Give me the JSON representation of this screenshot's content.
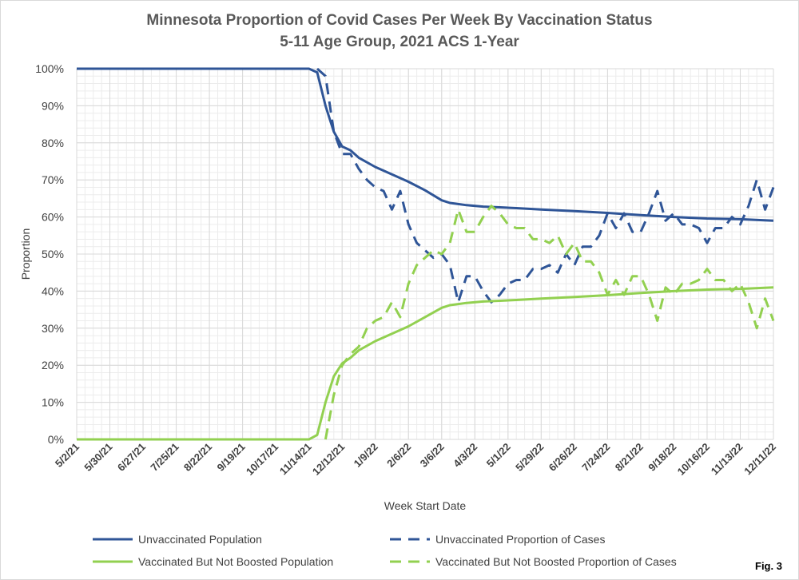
{
  "title_line1": "Minnesota Proportion of Covid Cases Per Week By Vaccination Status",
  "title_line2": "5-11 Age Group, 2021 ACS 1-Year",
  "fig_label": "Fig. 3",
  "colors": {
    "blue": "#2F5597",
    "green": "#92D050",
    "grid": "#d9d9d9",
    "axis_text": "#404040"
  },
  "chart_data": {
    "type": "line",
    "title": "Minnesota Proportion of Covid Cases Per Week By Vaccination Status",
    "subtitle": "5-11 Age Group, 2021 ACS 1-Year",
    "xlabel": "Week Start Date",
    "ylabel": "Proportion",
    "ylim": [
      0,
      1
    ],
    "yticks": [
      "0%",
      "10%",
      "20%",
      "30%",
      "40%",
      "50%",
      "60%",
      "70%",
      "80%",
      "90%",
      "100%"
    ],
    "xtick_labels": [
      "5/2/21",
      "5/30/21",
      "6/27/21",
      "7/25/21",
      "8/22/21",
      "9/19/21",
      "10/17/21",
      "11/14/21",
      "12/12/21",
      "1/9/22",
      "2/6/22",
      "3/6/22",
      "4/3/22",
      "5/1/22",
      "5/29/22",
      "6/26/22",
      "7/24/22",
      "8/21/22",
      "9/18/22",
      "10/16/22",
      "11/13/22",
      "12/11/22"
    ],
    "x_start": "5/2/21",
    "x_end": "12/11/22",
    "grid": true,
    "legend_position": "bottom",
    "series": [
      {
        "name": "Unvaccinated Population",
        "style": "solid",
        "color": "#2F5597",
        "points": [
          [
            "5/2/21",
            1.0
          ],
          [
            "11/7/21",
            1.0
          ],
          [
            "11/14/21",
            1.0
          ],
          [
            "11/21/21",
            0.99
          ],
          [
            "11/28/21",
            0.9
          ],
          [
            "12/5/21",
            0.83
          ],
          [
            "12/12/21",
            0.79
          ],
          [
            "12/19/21",
            0.78
          ],
          [
            "12/26/21",
            0.76
          ],
          [
            "1/9/22",
            0.735
          ],
          [
            "1/23/22",
            0.715
          ],
          [
            "2/6/22",
            0.695
          ],
          [
            "2/20/22",
            0.672
          ],
          [
            "3/6/22",
            0.645
          ],
          [
            "3/13/22",
            0.638
          ],
          [
            "3/27/22",
            0.632
          ],
          [
            "4/10/22",
            0.628
          ],
          [
            "4/24/22",
            0.626
          ],
          [
            "5/8/22",
            0.624
          ],
          [
            "5/29/22",
            0.62
          ],
          [
            "6/26/22",
            0.616
          ],
          [
            "7/24/22",
            0.611
          ],
          [
            "8/21/22",
            0.605
          ],
          [
            "9/18/22",
            0.6
          ],
          [
            "10/16/22",
            0.596
          ],
          [
            "11/13/22",
            0.594
          ],
          [
            "12/11/22",
            0.59
          ]
        ]
      },
      {
        "name": "Unvaccinated Proportion of Cases",
        "style": "dashed",
        "color": "#2F5597",
        "points": [
          [
            "11/21/21",
            1.0
          ],
          [
            "11/28/21",
            0.98
          ],
          [
            "12/5/21",
            0.83
          ],
          [
            "12/12/21",
            0.77
          ],
          [
            "12/19/21",
            0.77
          ],
          [
            "12/26/21",
            0.73
          ],
          [
            "1/2/22",
            0.7
          ],
          [
            "1/9/22",
            0.68
          ],
          [
            "1/16/22",
            0.67
          ],
          [
            "1/23/22",
            0.62
          ],
          [
            "1/30/22",
            0.67
          ],
          [
            "2/6/22",
            0.58
          ],
          [
            "2/13/22",
            0.53
          ],
          [
            "2/20/22",
            0.51
          ],
          [
            "2/27/22",
            0.49
          ],
          [
            "3/6/22",
            0.5
          ],
          [
            "3/13/22",
            0.47
          ],
          [
            "3/20/22",
            0.37
          ],
          [
            "3/27/22",
            0.44
          ],
          [
            "4/3/22",
            0.44
          ],
          [
            "4/10/22",
            0.4
          ],
          [
            "4/17/22",
            0.37
          ],
          [
            "4/24/22",
            0.39
          ],
          [
            "5/1/22",
            0.42
          ],
          [
            "5/8/22",
            0.43
          ],
          [
            "5/15/22",
            0.43
          ],
          [
            "5/22/22",
            0.46
          ],
          [
            "5/29/22",
            0.46
          ],
          [
            "6/5/22",
            0.47
          ],
          [
            "6/12/22",
            0.45
          ],
          [
            "6/19/22",
            0.5
          ],
          [
            "6/26/22",
            0.47
          ],
          [
            "7/3/22",
            0.52
          ],
          [
            "7/10/22",
            0.52
          ],
          [
            "7/17/22",
            0.55
          ],
          [
            "7/24/22",
            0.61
          ],
          [
            "7/31/22",
            0.57
          ],
          [
            "8/7/22",
            0.61
          ],
          [
            "8/14/22",
            0.56
          ],
          [
            "8/21/22",
            0.56
          ],
          [
            "8/28/22",
            0.61
          ],
          [
            "9/4/22",
            0.67
          ],
          [
            "9/11/22",
            0.59
          ],
          [
            "9/18/22",
            0.61
          ],
          [
            "9/25/22",
            0.58
          ],
          [
            "10/2/22",
            0.58
          ],
          [
            "10/9/22",
            0.57
          ],
          [
            "10/16/22",
            0.53
          ],
          [
            "10/23/22",
            0.57
          ],
          [
            "10/30/22",
            0.57
          ],
          [
            "11/6/22",
            0.6
          ],
          [
            "11/13/22",
            0.58
          ],
          [
            "11/20/22",
            0.63
          ],
          [
            "11/27/22",
            0.7
          ],
          [
            "12/4/22",
            0.62
          ],
          [
            "12/11/22",
            0.68
          ]
        ]
      },
      {
        "name": "Vaccinated But Not Boosted Population",
        "style": "solid",
        "color": "#92D050",
        "points": [
          [
            "5/2/21",
            0.0
          ],
          [
            "11/7/21",
            0.0
          ],
          [
            "11/14/21",
            0.0
          ],
          [
            "11/21/21",
            0.012
          ],
          [
            "11/28/21",
            0.1
          ],
          [
            "12/5/21",
            0.17
          ],
          [
            "12/12/21",
            0.205
          ],
          [
            "12/19/21",
            0.22
          ],
          [
            "12/26/21",
            0.24
          ],
          [
            "1/9/22",
            0.265
          ],
          [
            "1/23/22",
            0.285
          ],
          [
            "2/6/22",
            0.305
          ],
          [
            "2/20/22",
            0.33
          ],
          [
            "3/6/22",
            0.355
          ],
          [
            "3/13/22",
            0.362
          ],
          [
            "3/27/22",
            0.368
          ],
          [
            "4/10/22",
            0.372
          ],
          [
            "4/24/22",
            0.374
          ],
          [
            "5/8/22",
            0.376
          ],
          [
            "5/29/22",
            0.38
          ],
          [
            "6/26/22",
            0.384
          ],
          [
            "7/24/22",
            0.389
          ],
          [
            "8/21/22",
            0.395
          ],
          [
            "9/18/22",
            0.4
          ],
          [
            "10/16/22",
            0.404
          ],
          [
            "11/13/22",
            0.406
          ],
          [
            "12/11/22",
            0.41
          ]
        ]
      },
      {
        "name": "Vaccinated But Not Boosted Proportion of Cases",
        "style": "dashed",
        "color": "#92D050",
        "points": [
          [
            "11/28/21",
            0.0
          ],
          [
            "12/5/21",
            0.12
          ],
          [
            "12/12/21",
            0.2
          ],
          [
            "12/19/21",
            0.23
          ],
          [
            "12/26/21",
            0.25
          ],
          [
            "1/2/22",
            0.3
          ],
          [
            "1/9/22",
            0.32
          ],
          [
            "1/16/22",
            0.33
          ],
          [
            "1/23/22",
            0.37
          ],
          [
            "1/30/22",
            0.33
          ],
          [
            "2/6/22",
            0.42
          ],
          [
            "2/13/22",
            0.47
          ],
          [
            "2/20/22",
            0.49
          ],
          [
            "2/27/22",
            0.51
          ],
          [
            "3/6/22",
            0.5
          ],
          [
            "3/13/22",
            0.53
          ],
          [
            "3/20/22",
            0.62
          ],
          [
            "3/27/22",
            0.56
          ],
          [
            "4/3/22",
            0.56
          ],
          [
            "4/10/22",
            0.6
          ],
          [
            "4/17/22",
            0.63
          ],
          [
            "4/24/22",
            0.61
          ],
          [
            "5/1/22",
            0.58
          ],
          [
            "5/8/22",
            0.57
          ],
          [
            "5/15/22",
            0.57
          ],
          [
            "5/22/22",
            0.54
          ],
          [
            "5/29/22",
            0.54
          ],
          [
            "6/5/22",
            0.53
          ],
          [
            "6/12/22",
            0.55
          ],
          [
            "6/19/22",
            0.5
          ],
          [
            "6/26/22",
            0.53
          ],
          [
            "7/3/22",
            0.48
          ],
          [
            "7/10/22",
            0.48
          ],
          [
            "7/17/22",
            0.45
          ],
          [
            "7/24/22",
            0.39
          ],
          [
            "7/31/22",
            0.43
          ],
          [
            "8/7/22",
            0.39
          ],
          [
            "8/14/22",
            0.44
          ],
          [
            "8/21/22",
            0.44
          ],
          [
            "8/28/22",
            0.39
          ],
          [
            "9/4/22",
            0.32
          ],
          [
            "9/11/22",
            0.41
          ],
          [
            "9/18/22",
            0.39
          ],
          [
            "9/25/22",
            0.42
          ],
          [
            "10/2/22",
            0.42
          ],
          [
            "10/9/22",
            0.43
          ],
          [
            "10/16/22",
            0.46
          ],
          [
            "10/23/22",
            0.43
          ],
          [
            "10/30/22",
            0.43
          ],
          [
            "11/6/22",
            0.4
          ],
          [
            "11/13/22",
            0.42
          ],
          [
            "11/20/22",
            0.37
          ],
          [
            "11/27/22",
            0.3
          ],
          [
            "12/4/22",
            0.38
          ],
          [
            "12/11/22",
            0.32
          ]
        ]
      }
    ]
  }
}
